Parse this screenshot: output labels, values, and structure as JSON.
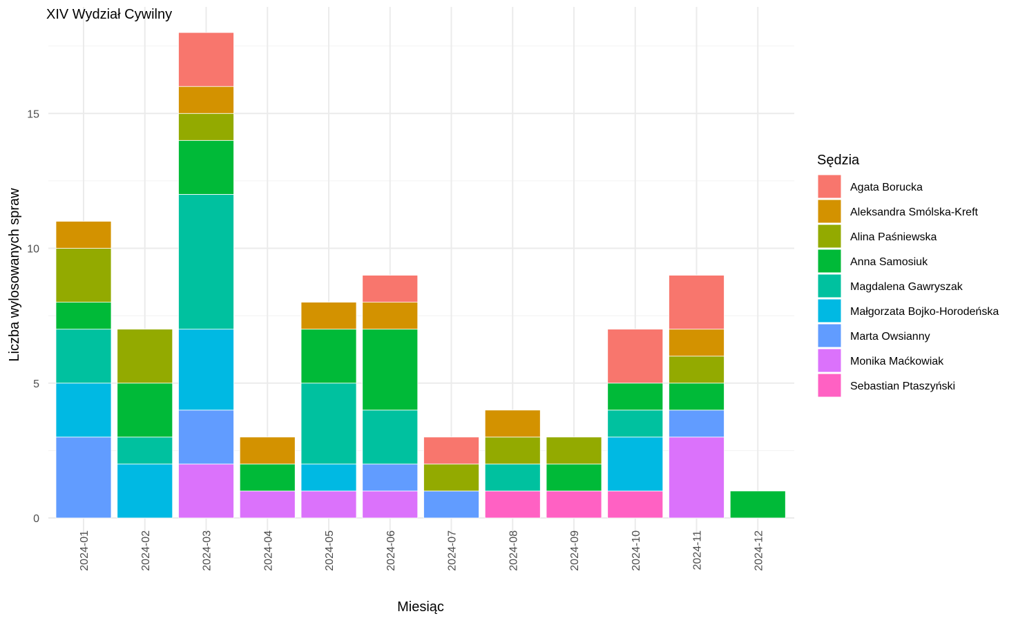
{
  "chart_data": {
    "type": "bar",
    "stacked": true,
    "title": "XIV Wydział Cywilny",
    "xlabel": "Miesiąc",
    "ylabel": "Liczba wylosowanych spraw",
    "ylim": [
      0,
      18.9
    ],
    "yticks": [
      0,
      5,
      10,
      15
    ],
    "grid": true,
    "legend_title": "Sędzia",
    "legend_position": "right",
    "categories": [
      "2024-01",
      "2024-02",
      "2024-03",
      "2024-04",
      "2024-05",
      "2024-06",
      "2024-07",
      "2024-08",
      "2024-09",
      "2024-10",
      "2024-11",
      "2024-12"
    ],
    "series": [
      {
        "name": "Agata Borucka",
        "color": "#F8766D",
        "values": [
          0,
          0,
          2,
          0,
          0,
          1,
          1,
          0,
          0,
          2,
          2,
          0
        ]
      },
      {
        "name": "Aleksandra Smólska-Kreft",
        "color": "#D39200",
        "values": [
          1,
          0,
          1,
          1,
          1,
          1,
          0,
          1,
          0,
          0,
          1,
          0
        ]
      },
      {
        "name": "Alina Paśniewska",
        "color": "#93AA00",
        "values": [
          2,
          2,
          1,
          0,
          0,
          0,
          1,
          1,
          1,
          0,
          1,
          0
        ]
      },
      {
        "name": "Anna Samosiuk",
        "color": "#00BA38",
        "values": [
          1,
          2,
          2,
          1,
          2,
          3,
          0,
          0,
          1,
          1,
          1,
          1
        ]
      },
      {
        "name": "Magdalena Gawryszak",
        "color": "#00C19F",
        "values": [
          2,
          1,
          5,
          0,
          3,
          2,
          0,
          1,
          0,
          1,
          0,
          0
        ]
      },
      {
        "name": "Małgorzata Bojko-Horodeńska",
        "color": "#00B9E3",
        "values": [
          2,
          2,
          3,
          0,
          1,
          0,
          0,
          0,
          0,
          2,
          0,
          0
        ]
      },
      {
        "name": "Marta Owsianny",
        "color": "#619CFF",
        "values": [
          3,
          0,
          2,
          0,
          0,
          1,
          1,
          0,
          0,
          0,
          1,
          0
        ]
      },
      {
        "name": "Monika Maćkowiak",
        "color": "#DB72FB",
        "values": [
          0,
          0,
          2,
          1,
          1,
          1,
          0,
          0,
          0,
          0,
          3,
          0
        ]
      },
      {
        "name": "Sebastian Ptaszyński",
        "color": "#FF61C3",
        "values": [
          0,
          0,
          0,
          0,
          0,
          0,
          0,
          1,
          1,
          1,
          0,
          0
        ]
      }
    ]
  }
}
